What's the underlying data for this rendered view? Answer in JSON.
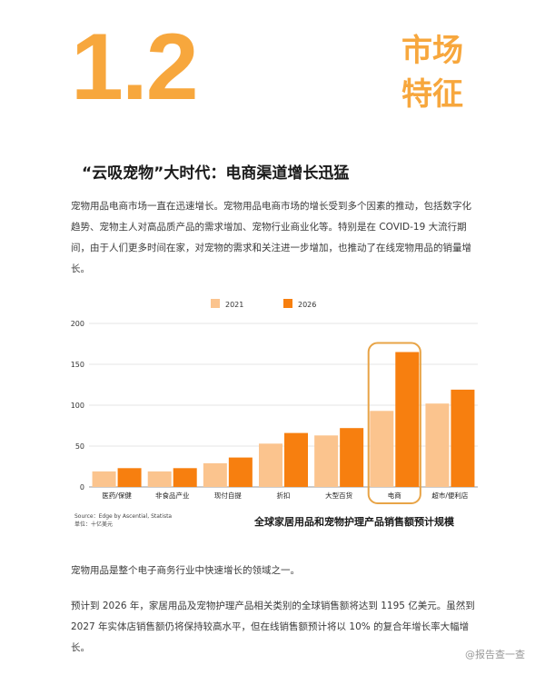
{
  "section": {
    "number": "1.2",
    "title_line1": "市场",
    "title_line2": "特征"
  },
  "heading": "“云吸宠物”大时代：电商渠道增长迅猛",
  "intro": "宠物用品电商市场一直在迅速增长。宠物用品电商市场的增长受到多个因素的推动，包括数字化趋势、宠物主人对高品质产品的需求增加、宠物行业商业化等。特别是在 COVID-19 大流行期间，由于人们更多时间在家，对宠物的需求和关注进一步增加，也推动了在线宠物用品的销量增长。",
  "chart_data": {
    "type": "bar",
    "title": "全球家居用品和宠物护理产品销售额预计规模",
    "categories": [
      "医药/保健",
      "非食品产业",
      "现付自提",
      "折扣",
      "大型百货",
      "电商",
      "超市/便利店"
    ],
    "series": [
      {
        "name": "2021",
        "values": [
          19,
          19,
          29,
          53,
          63,
          93,
          102
        ],
        "color": "#FBC48E"
      },
      {
        "name": "2026",
        "values": [
          23,
          23,
          36,
          66,
          72,
          165,
          119
        ],
        "color": "#F77F0F"
      }
    ],
    "ylim": [
      0,
      200
    ],
    "yticks": [
      "0",
      "50",
      "100",
      "150",
      "200"
    ],
    "grid": true,
    "legend": "top-center",
    "highlight_category": "电商",
    "highlight_color": "#E8A447"
  },
  "source": {
    "line1": "Source：Edge by Ascential, Statista",
    "line2": "单位：十亿美元"
  },
  "p2": "宠物用品是整个电子商务行业中快速增长的领域之一。",
  "p3": "预计到 2026 年，家居用品及宠物护理产品相关类别的全球销售额将达到 1195 亿美元。虽然到 2027 年实体店销售额仍将保持较高水平，但在线销售额预计将以 10% 的复合年增长率大幅增长。",
  "watermark": "@报告查一查"
}
